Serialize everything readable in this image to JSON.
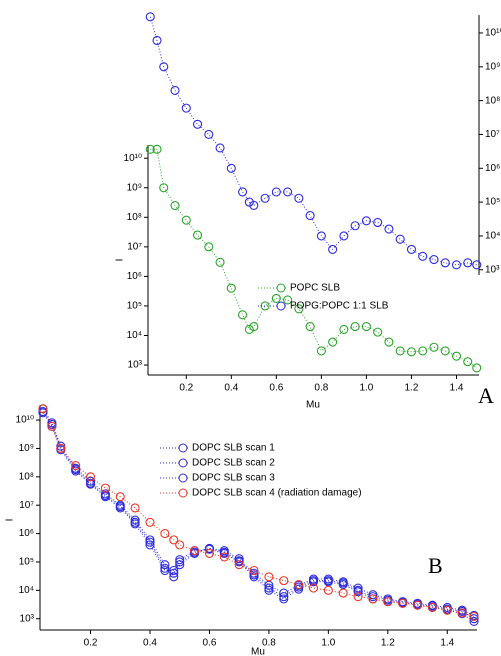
{
  "chart_data": [
    {
      "type": "scatter",
      "annotation": "A",
      "xlabel": "Mu",
      "ylabel": "I",
      "log_y": true,
      "log_y2": true,
      "xlim": [
        0.03,
        1.5
      ],
      "xticks": [
        0.2,
        0.4,
        0.6,
        0.8,
        {
          "value": 1.0,
          "label": "1.0"
        },
        1.2,
        1.4
      ],
      "ylim": [
        460,
        28000000000.0
      ],
      "y2lim": [
        700,
        34000000000.0
      ],
      "yticks": [
        {
          "value": 1000,
          "label": "10³"
        },
        {
          "value": 10000,
          "label": "10⁴"
        },
        {
          "value": 100000,
          "label": "10⁵"
        },
        {
          "value": 1000000,
          "label": "10⁶"
        },
        {
          "value": 10000000,
          "label": "10⁷"
        },
        {
          "value": 100000000,
          "label": "10⁸"
        },
        {
          "value": 1000000000,
          "label": "10⁹"
        },
        {
          "value": 10000000000,
          "label": "10¹⁰"
        }
      ],
      "y2ticks": [
        {
          "value": 1000,
          "label": "10³"
        },
        {
          "value": 10000,
          "label": "10⁴"
        },
        {
          "value": 100000,
          "label": "10⁵"
        },
        {
          "value": 1000000,
          "label": "10⁶"
        },
        {
          "value": 10000000,
          "label": "10⁷"
        },
        {
          "value": 100000000,
          "label": "10⁸"
        },
        {
          "value": 1000000000,
          "label": "10⁹"
        },
        {
          "value": 10000000000,
          "label": "10¹⁰"
        }
      ],
      "x": [
        0.04,
        0.07,
        0.1,
        0.15,
        0.2,
        0.25,
        0.3,
        0.35,
        0.4,
        0.45,
        0.48,
        0.5,
        0.55,
        0.6,
        0.65,
        0.7,
        0.75,
        0.8,
        0.85,
        0.9,
        0.95,
        1.0,
        1.05,
        1.1,
        1.15,
        1.2,
        1.25,
        1.3,
        1.35,
        1.4,
        1.45,
        1.49
      ],
      "series": [
        {
          "name": "POPC SLB",
          "color": "#2aa52a",
          "values": [
            20000000000.0,
            20000000000.0,
            1000000000.0,
            250000000.0,
            80000000.0,
            25000000.0,
            10000000.0,
            3000000.0,
            400000.0,
            50000.0,
            16000.0,
            20000.0,
            100000.0,
            180000.0,
            160000.0,
            80000.0,
            20000.0,
            3000.0,
            6000.0,
            16000.0,
            20000.0,
            20000.0,
            13000.0,
            6000.0,
            3000.0,
            2800.0,
            3000.0,
            4000.0,
            3000.0,
            2000.0,
            1300.0,
            800.0
          ]
        },
        {
          "name": "POPG:POPC 1:1 SLB",
          "color": "#2b2bdd",
          "axis": "y2",
          "values": [
            30000000000.0,
            6000000000.0,
            1000000000.0,
            200000000.0,
            60000000.0,
            20000000.0,
            10000000.0,
            4000000.0,
            1000000.0,
            200000.0,
            100000.0,
            80000.0,
            130000.0,
            200000.0,
            200000.0,
            130000.0,
            40000.0,
            10000.0,
            4000.0,
            10000.0,
            20000.0,
            28000.0,
            25000.0,
            16000.0,
            8000.0,
            4000.0,
            2500.0,
            2000.0,
            1600.0,
            1400.0,
            1600.0,
            1400.0
          ]
        }
      ]
    },
    {
      "type": "scatter",
      "annotation": "B",
      "xlabel": "Mu",
      "ylabel": "I",
      "log_y": true,
      "xlim": [
        0.03,
        1.5
      ],
      "xticks": [
        0.2,
        0.4,
        0.6,
        0.8,
        {
          "value": 1.0,
          "label": "1.0"
        },
        1.2,
        1.4
      ],
      "ylim": [
        400,
        34000000000.0
      ],
      "yticks": [
        {
          "value": 1000,
          "label": "10³"
        },
        {
          "value": 10000,
          "label": "10⁴"
        },
        {
          "value": 100000,
          "label": "10⁵"
        },
        {
          "value": 1000000,
          "label": "10⁶"
        },
        {
          "value": 10000000,
          "label": "10⁷"
        },
        {
          "value": 100000000,
          "label": "10⁸"
        },
        {
          "value": 1000000000,
          "label": "10⁹"
        },
        {
          "value": 10000000000,
          "label": "10¹⁰"
        }
      ],
      "x": [
        0.04,
        0.07,
        0.1,
        0.15,
        0.2,
        0.25,
        0.3,
        0.35,
        0.4,
        0.45,
        0.48,
        0.5,
        0.55,
        0.6,
        0.65,
        0.7,
        0.75,
        0.8,
        0.85,
        0.9,
        0.95,
        1.0,
        1.05,
        1.1,
        1.15,
        1.2,
        1.25,
        1.3,
        1.35,
        1.4,
        1.45,
        1.49
      ],
      "series": [
        {
          "name": "DOPC SLB scan 1",
          "color": "#2b2bdd",
          "values": [
            25000000000.0,
            8000000000.0,
            1200000000.0,
            200000000.0,
            70000000.0,
            25000000.0,
            10000000.0,
            3000000.0,
            600000.0,
            80000.0,
            30000.0,
            80000.0,
            200000.0,
            300000.0,
            250000.0,
            130000.0,
            40000.0,
            15000.0,
            8000.0,
            15000.0,
            25000.0,
            25000.0,
            20000.0,
            12000.0,
            7000.0,
            5000.0,
            4000.0,
            3500.0,
            3000.0,
            2500.0,
            2000.0,
            1300.0
          ]
        },
        {
          "name": "DOPC SLB scan 2",
          "color": "#2b2bdd",
          "values": [
            20000000000.0,
            7000000000.0,
            1000000000.0,
            180000000.0,
            60000000.0,
            22000000.0,
            9000000.0,
            2500000.0,
            500000.0,
            60000.0,
            40000.0,
            100000.0,
            220000.0,
            300000.0,
            220000.0,
            110000.0,
            35000.0,
            12000.0,
            6000.0,
            13000.0,
            22000.0,
            22000.0,
            18000.0,
            10000.0,
            6000.0,
            4500.0,
            3800.0,
            3200.0,
            2800.0,
            2200.0,
            1800.0,
            1000.0
          ]
        },
        {
          "name": "DOPC SLB scan 3",
          "color": "#2b2bdd",
          "values": [
            18000000000.0,
            6000000000.0,
            900000000.0,
            160000000.0,
            55000000.0,
            20000000.0,
            8000000.0,
            2200000.0,
            400000.0,
            50000.0,
            50000.0,
            120000.0,
            250000.0,
            280000.0,
            200000.0,
            100000.0,
            30000.0,
            10000.0,
            5000.0,
            11000.0,
            20000.0,
            20000.0,
            16000.0,
            9000.0,
            5000.0,
            4000.0,
            3500.0,
            3000.0,
            2500.0,
            2000.0,
            1500.0,
            800.0
          ]
        },
        {
          "name": "DOPC SLB scan 4 (radiation damage)",
          "color": "#ee3322",
          "values": [
            25000000000.0,
            6000000000.0,
            1000000000.0,
            250000000.0,
            100000000.0,
            40000000.0,
            20000000.0,
            8000000.0,
            2500000.0,
            1000000.0,
            600000.0,
            400000.0,
            250000.0,
            200000.0,
            150000.0,
            80000.0,
            50000.0,
            30000.0,
            22000.0,
            16000.0,
            12000.0,
            10000.0,
            8000.0,
            6000.0,
            5000.0,
            4000.0,
            3500.0,
            3000.0,
            2500.0,
            2000.0,
            1600.0,
            1200.0
          ]
        }
      ]
    }
  ]
}
